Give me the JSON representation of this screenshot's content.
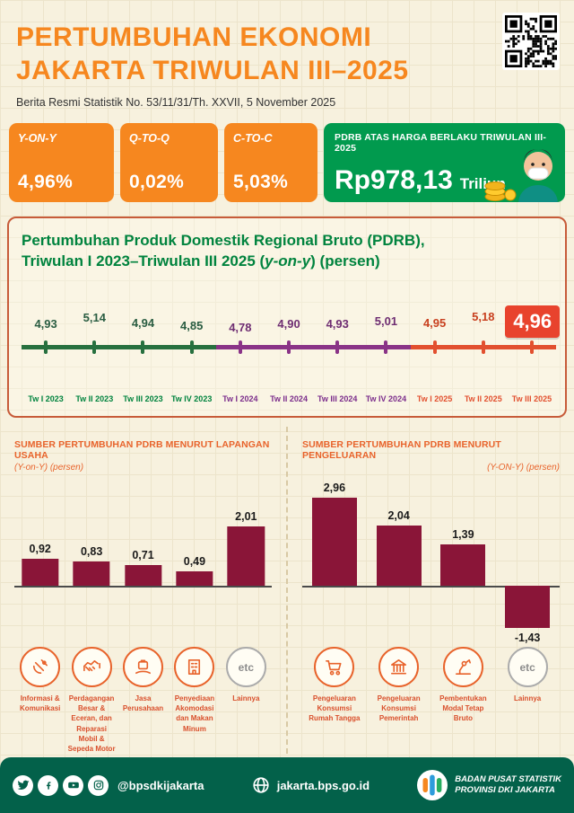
{
  "colors": {
    "orange": "#F6871F",
    "green": "#019A4E",
    "footer_green": "#03614A",
    "maroon_bar": "#8A1538",
    "red_highlight": "#E8432D",
    "growth_title_green": "#00833E",
    "section_orange": "#E8632B",
    "category_red": "#D94F2B"
  },
  "header": {
    "title_line1": "PERTUMBUHAN EKONOMI",
    "title_line2": "JAKARTA TRIWULAN III–2025",
    "subtitle": "Berita Resmi Statistik No. 53/11/31/Th. XXVII, 5 November 2025"
  },
  "stats": [
    {
      "label": "Y-ON-Y",
      "value": "4,96%"
    },
    {
      "label": "Q-TO-Q",
      "value": "0,02%"
    },
    {
      "label": "C-TO-C",
      "value": "5,03%"
    }
  ],
  "pdrb_box": {
    "label": "PDRB ATAS HARGA BERLAKU TRIWULAN III-2025",
    "value": "Rp978,13",
    "unit": "Triliun"
  },
  "growth_section": {
    "title_line1": "Pertumbuhan Produk Domestik Regional Bruto (PDRB),",
    "title_line2_pre": "Triwulan I 2023–Triwulan III 2025 (",
    "title_line2_italic": "y-on-y",
    "title_line2_post": ") (persen)"
  },
  "chart_data": [
    {
      "type": "line",
      "title": "Pertumbuhan Produk Domestik Regional Bruto (PDRB), Triwulan I 2023–Triwulan III 2025 (y-on-y) (persen)",
      "categories": [
        "Tw I 2023",
        "Tw II 2023",
        "Tw III 2023",
        "Tw IV 2023",
        "Tw I 2024",
        "Tw II 2024",
        "Tw III 2024",
        "Tw IV 2024",
        "Tw I 2025",
        "Tw II 2025",
        "Tw III 2025"
      ],
      "values": [
        4.93,
        5.14,
        4.94,
        4.85,
        4.78,
        4.9,
        4.93,
        5.01,
        4.95,
        5.18,
        4.96
      ],
      "labels": [
        "4,93",
        "5,14",
        "4,94",
        "4,85",
        "4,78",
        "4,90",
        "4,93",
        "5,01",
        "4,95",
        "5,18",
        "4,96"
      ],
      "ylim": [
        4.7,
        5.3
      ],
      "groups": [
        0,
        0,
        0,
        0,
        1,
        1,
        1,
        1,
        2,
        2,
        2
      ],
      "segment_colors": [
        "#27703F",
        "#8A3387",
        "#E2502F"
      ],
      "label_colors": [
        "#2A5D42",
        "#6E2D72",
        "#C8401F"
      ],
      "axis_label_colors": [
        "#00833E",
        "#7B2D8B",
        "#E2502F"
      ],
      "highlight_last": true,
      "legend": "none",
      "grid": false
    },
    {
      "type": "bar",
      "title": "SUMBER PERTUMBUHAN PDRB MENURUT LAPANGAN USAHA",
      "subtitle": "(Y-on-Y) (persen)",
      "categories": [
        "Informasi & Komunikasi",
        "Perdagangan Besar & Eceran, dan Reparasi Mobil & Sepeda Motor",
        "Jasa Perusahaan",
        "Penyediaan Akomodasi dan Makan Minum",
        "Lainnya"
      ],
      "icons": [
        "satellite-dish-icon",
        "trade-icon",
        "briefcase-hand-icon",
        "hotel-icon",
        "etc-icon"
      ],
      "values": [
        0.92,
        0.83,
        0.71,
        0.49,
        2.01
      ],
      "labels": [
        "0,92",
        "0,83",
        "0,71",
        "0,49",
        "2,01"
      ],
      "bar_color": "#8A1538",
      "ylim": [
        0,
        3
      ],
      "legend": "none",
      "grid": false
    },
    {
      "type": "bar",
      "title": "SUMBER PERTUMBUHAN PDRB MENURUT PENGELUARAN",
      "subtitle": "(Y-ON-Y) (persen)",
      "categories": [
        "Pengeluaran Konsumsi Rumah Tangga",
        "Pengeluaran Konsumsi Pemerintah",
        "Pembentukan Modal Tetap Bruto",
        "Lainnya"
      ],
      "icons": [
        "shopping-cart-icon",
        "government-building-icon",
        "robot-arm-icon",
        "etc-icon"
      ],
      "values": [
        2.96,
        2.04,
        1.39,
        -1.43
      ],
      "labels": [
        "2,96",
        "2,04",
        "1,39",
        "-1,43"
      ],
      "bar_color": "#8A1538",
      "ylim": [
        -2,
        3
      ],
      "legend": "none",
      "grid": false
    }
  ],
  "footer": {
    "social_handle": "@bpsdkijakarta",
    "website": "jakarta.bps.go.id",
    "org_line1": "BADAN PUSAT STATISTIK",
    "org_line2": "PROVINSI DKI JAKARTA",
    "social_icons": [
      "twitter-icon",
      "facebook-icon",
      "youtube-icon",
      "instagram-icon"
    ]
  }
}
